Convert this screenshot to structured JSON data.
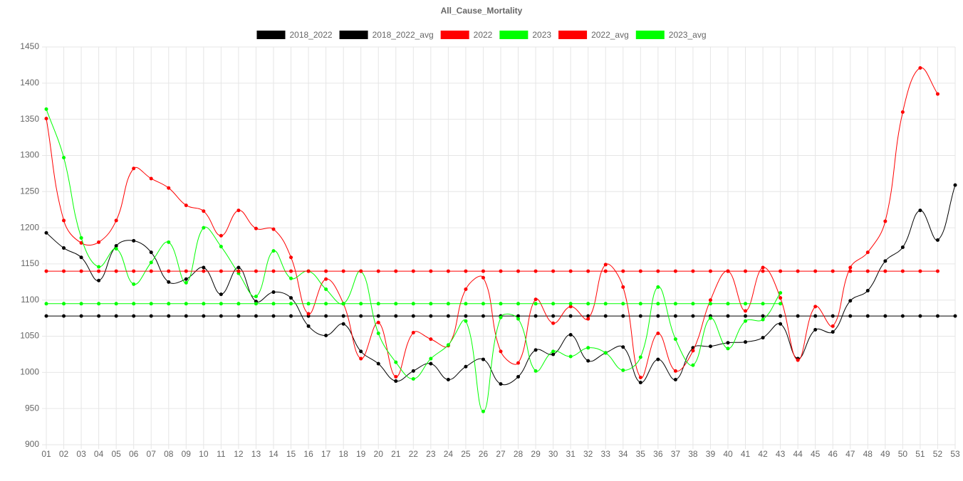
{
  "chart_data": {
    "type": "line",
    "title": "All_Cause_Mortality",
    "categories": [
      "01",
      "02",
      "03",
      "04",
      "05",
      "06",
      "07",
      "08",
      "09",
      "10",
      "11",
      "12",
      "13",
      "14",
      "15",
      "16",
      "17",
      "18",
      "19",
      "20",
      "21",
      "22",
      "23",
      "24",
      "25",
      "26",
      "27",
      "28",
      "29",
      "30",
      "31",
      "32",
      "33",
      "34",
      "35",
      "36",
      "37",
      "38",
      "39",
      "40",
      "41",
      "42",
      "43",
      "44",
      "45",
      "46",
      "47",
      "48",
      "49",
      "50",
      "51",
      "52",
      "53"
    ],
    "ylim": [
      900,
      1450
    ],
    "yticks": [
      900,
      950,
      1000,
      1050,
      1100,
      1150,
      1200,
      1250,
      1300,
      1350,
      1400,
      1450
    ],
    "grid": true,
    "legend": "top",
    "series": [
      {
        "name": "2018_2022",
        "color": "#000000",
        "values": [
          1193,
          1172,
          1159,
          1127,
          1175,
          1182,
          1166,
          1125,
          1129,
          1145,
          1108,
          1145,
          1098,
          1111,
          1103,
          1064,
          1051,
          1067,
          1029,
          1012,
          988,
          1002,
          1012,
          990,
          1008,
          1018,
          984,
          994,
          1031,
          1025,
          1052,
          1016,
          1027,
          1035,
          986,
          1018,
          990,
          1034,
          1036,
          1041,
          1042,
          1048,
          1067,
          1019,
          1059,
          1056,
          1099,
          1113,
          1154,
          1173,
          1224,
          1183,
          1259
        ]
      },
      {
        "name": "2018_2022_avg",
        "color": "#000000",
        "values": [
          1078,
          1078,
          1078,
          1078,
          1078,
          1078,
          1078,
          1078,
          1078,
          1078,
          1078,
          1078,
          1078,
          1078,
          1078,
          1078,
          1078,
          1078,
          1078,
          1078,
          1078,
          1078,
          1078,
          1078,
          1078,
          1078,
          1078,
          1078,
          1078,
          1078,
          1078,
          1078,
          1078,
          1078,
          1078,
          1078,
          1078,
          1078,
          1078,
          1078,
          1078,
          1078,
          1078,
          1078,
          1078,
          1078,
          1078,
          1078,
          1078,
          1078,
          1078,
          1078,
          1078
        ]
      },
      {
        "name": "2022",
        "color": "#ff0000",
        "values": [
          1351,
          1210,
          1179,
          1180,
          1210,
          1282,
          1268,
          1255,
          1231,
          1223,
          1189,
          1224,
          1199,
          1198,
          1159,
          1081,
          1129,
          1095,
          1019,
          1069,
          994,
          1055,
          1046,
          1037,
          1115,
          1131,
          1029,
          1013,
          1101,
          1068,
          1091,
          1074,
          1149,
          1118,
          993,
          1054,
          1002,
          1030,
          1100,
          1140,
          1085,
          1145,
          1103,
          1017,
          1091,
          1064,
          1145,
          1166,
          1209,
          1360,
          1421,
          1385,
          null
        ]
      },
      {
        "name": "2023",
        "color": "#00ff00",
        "values": [
          1364,
          1297,
          1186,
          1146,
          1171,
          1122,
          1152,
          1180,
          1124,
          1200,
          1174,
          1137,
          1105,
          1168,
          1130,
          1140,
          1115,
          1095,
          1140,
          1054,
          1014,
          991,
          1019,
          1038,
          1071,
          946,
          1076,
          1074,
          1002,
          1029,
          1022,
          1034,
          1027,
          1003,
          1021,
          1118,
          1046,
          1010,
          1075,
          1033,
          1071,
          1073,
          1110,
          null,
          null,
          null,
          null,
          null,
          null,
          null,
          null,
          null,
          null
        ]
      },
      {
        "name": "2022_avg",
        "color": "#ff0000",
        "values": [
          1140,
          1140,
          1140,
          1140,
          1140,
          1140,
          1140,
          1140,
          1140,
          1140,
          1140,
          1140,
          1140,
          1140,
          1140,
          1140,
          1140,
          1140,
          1140,
          1140,
          1140,
          1140,
          1140,
          1140,
          1140,
          1140,
          1140,
          1140,
          1140,
          1140,
          1140,
          1140,
          1140,
          1140,
          1140,
          1140,
          1140,
          1140,
          1140,
          1140,
          1140,
          1140,
          1140,
          1140,
          1140,
          1140,
          1140,
          1140,
          1140,
          1140,
          1140,
          1140,
          null
        ]
      },
      {
        "name": "2023_avg",
        "color": "#00ff00",
        "values": [
          1095,
          1095,
          1095,
          1095,
          1095,
          1095,
          1095,
          1095,
          1095,
          1095,
          1095,
          1095,
          1095,
          1095,
          1095,
          1095,
          1095,
          1095,
          1095,
          1095,
          1095,
          1095,
          1095,
          1095,
          1095,
          1095,
          1095,
          1095,
          1095,
          1095,
          1095,
          1095,
          1095,
          1095,
          1095,
          1095,
          1095,
          1095,
          1095,
          1095,
          1095,
          1095,
          1095,
          null,
          null,
          null,
          null,
          null,
          null,
          null,
          null,
          null,
          null
        ]
      }
    ]
  }
}
